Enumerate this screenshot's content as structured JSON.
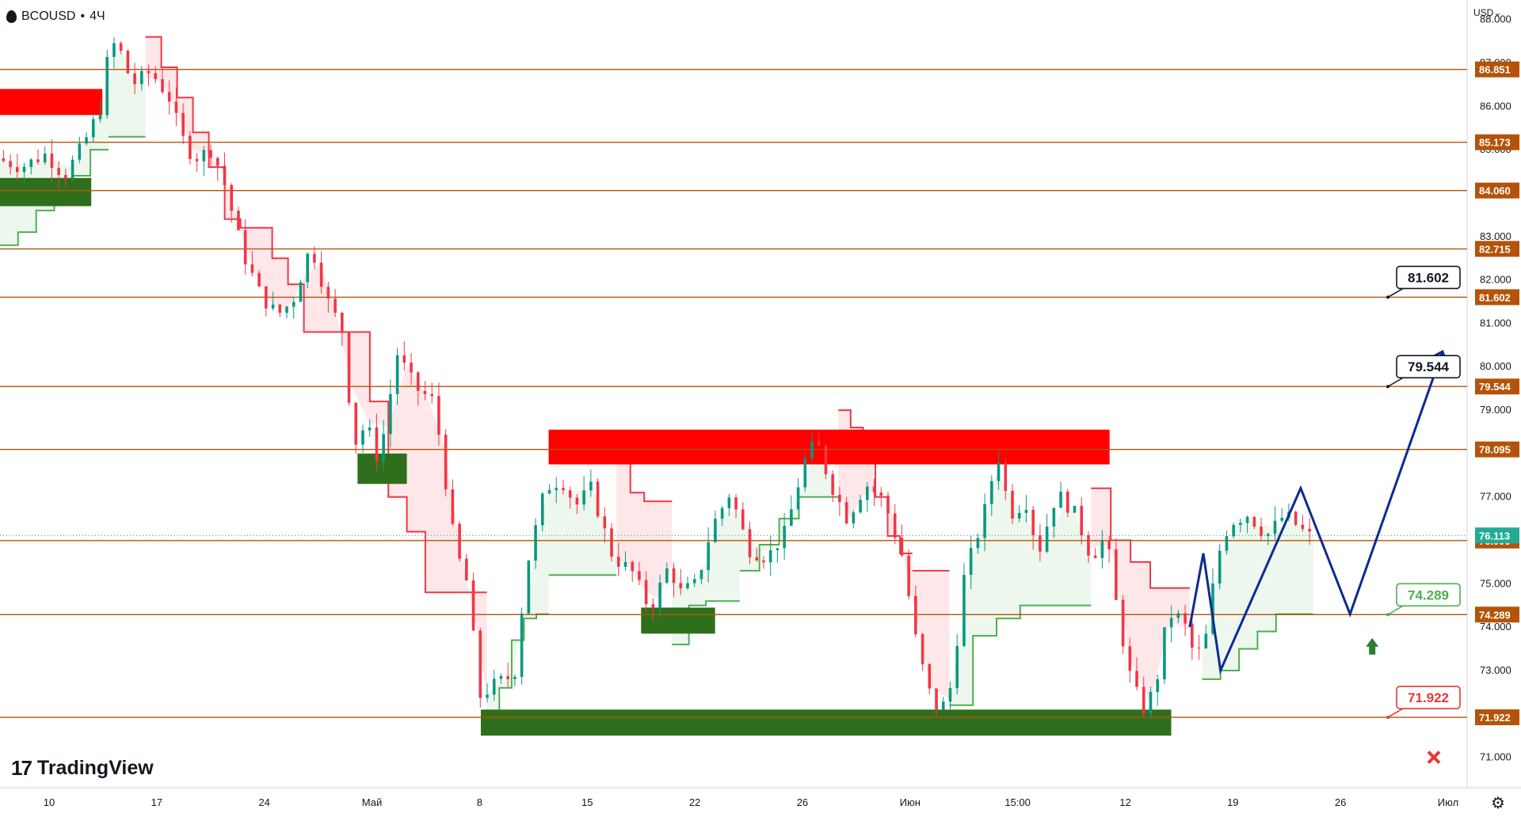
{
  "header": {
    "symbol": "BCOUSD",
    "sep": "•",
    "timeframe": "4Ч"
  },
  "currency": "USD",
  "brand": "TradingView",
  "settings_icon": "gear-icon",
  "chart_data": {
    "type": "candlestick",
    "y_axis": {
      "min": 70.3,
      "max": 88.45,
      "ticks": [
        71,
        72,
        73,
        74,
        75,
        76,
        77,
        78,
        79,
        80,
        81,
        82,
        83,
        84,
        85,
        86,
        87,
        88
      ],
      "decimals": 3
    },
    "x_axis": {
      "labels": [
        "10",
        "17",
        "24",
        "Май",
        "8",
        "15",
        "22",
        "26",
        "Июн",
        "15:00",
        "12",
        "19",
        "26",
        "Июл"
      ]
    },
    "current_price": {
      "value": 76.113,
      "label": "76.113",
      "color": "#22ab94"
    },
    "levels": [
      {
        "value": 86.851,
        "label": "86.851"
      },
      {
        "value": 85.173,
        "label": "85.173"
      },
      {
        "value": 84.06,
        "label": "84.060"
      },
      {
        "value": 82.715,
        "label": "82.715"
      },
      {
        "value": 81.602,
        "label": "81.602"
      },
      {
        "value": 79.544,
        "label": "79.544"
      },
      {
        "value": 78.095,
        "label": "78.095"
      },
      {
        "value": 75.995,
        "label": "75.995"
      },
      {
        "value": 74.289,
        "label": "74.289"
      },
      {
        "value": 71.922,
        "label": "71.922"
      }
    ],
    "level_color": "#b45309",
    "zones": [
      {
        "kind": "resistance",
        "color": "#ff0000",
        "start": 0,
        "end": 0.083,
        "low": 85.8,
        "high": 86.4
      },
      {
        "kind": "support",
        "color": "#2f6f1b",
        "start": 0,
        "end": 0.074,
        "low": 83.7,
        "high": 84.35
      },
      {
        "kind": "support",
        "color": "#2f6f1b",
        "start": 0.29,
        "end": 0.33,
        "low": 77.3,
        "high": 78.0
      },
      {
        "kind": "resistance",
        "color": "#ff0000",
        "start": 0.445,
        "end": 0.9,
        "low": 77.75,
        "high": 78.55
      },
      {
        "kind": "support",
        "color": "#2f6f1b",
        "start": 0.52,
        "end": 0.58,
        "low": 73.85,
        "high": 74.45
      },
      {
        "kind": "support",
        "color": "#2f6f1b",
        "start": 0.39,
        "end": 0.95,
        "low": 71.5,
        "high": 72.1
      }
    ],
    "forecast_path": {
      "color": "#0d2b8f",
      "points": [
        [
          0.965,
          74.0
        ],
        [
          0.976,
          75.7
        ],
        [
          0.99,
          73.0
        ],
        [
          1.055,
          77.2
        ],
        [
          1.095,
          74.3
        ],
        [
          1.17,
          80.35
        ]
      ]
    },
    "callouts": [
      {
        "label": "81.602",
        "value": 81.602,
        "border": "#131722",
        "text_color": "#131722"
      },
      {
        "label": "79.544",
        "value": 79.544,
        "border": "#131722",
        "text_color": "#131722"
      },
      {
        "label": "74.289",
        "value": 74.289,
        "border": "#4caf50",
        "text_color": "#4caf50"
      },
      {
        "label": "71.922",
        "value": 71.922,
        "border": "#e53935",
        "text_color": "#e53935"
      }
    ],
    "target_arrow": {
      "icon": "arrow-up-icon",
      "color": "#2e7d32",
      "value": 73.55
    },
    "stop_marker": {
      "icon": "cross-icon",
      "color": "#e53935",
      "value": 71.0
    },
    "indicator": {
      "type": "supertrend",
      "up_color": "#4caf50",
      "down_color": "#f23645"
    },
    "price_path": [
      [
        0,
        84.8
      ],
      [
        0.02,
        84.6
      ],
      [
        0.04,
        84.9
      ],
      [
        0.055,
        84.4
      ],
      [
        0.07,
        85.1
      ],
      [
        0.085,
        86.0
      ],
      [
        0.092,
        87.5
      ],
      [
        0.1,
        87.3
      ],
      [
        0.11,
        86.5
      ],
      [
        0.125,
        86.8
      ],
      [
        0.14,
        86.2
      ],
      [
        0.15,
        85.3
      ],
      [
        0.16,
        84.8
      ],
      [
        0.175,
        85.0
      ],
      [
        0.185,
        84.2
      ],
      [
        0.2,
        82.6
      ],
      [
        0.215,
        81.6
      ],
      [
        0.228,
        81.2
      ],
      [
        0.24,
        81.5
      ],
      [
        0.255,
        82.8
      ],
      [
        0.27,
        81.4
      ],
      [
        0.28,
        80.9
      ],
      [
        0.29,
        78.2
      ],
      [
        0.3,
        78.7
      ],
      [
        0.31,
        77.8
      ],
      [
        0.325,
        80.3
      ],
      [
        0.34,
        79.5
      ],
      [
        0.355,
        79.2
      ],
      [
        0.365,
        77.2
      ],
      [
        0.372,
        75.8
      ],
      [
        0.382,
        75.0
      ],
      [
        0.392,
        72.4
      ],
      [
        0.405,
        72.7
      ],
      [
        0.42,
        72.9
      ],
      [
        0.43,
        75.4
      ],
      [
        0.445,
        77.2
      ],
      [
        0.458,
        77.4
      ],
      [
        0.47,
        76.8
      ],
      [
        0.482,
        77.2
      ],
      [
        0.5,
        75.6
      ],
      [
        0.515,
        75.3
      ],
      [
        0.53,
        74.4
      ],
      [
        0.545,
        75.4
      ],
      [
        0.555,
        74.8
      ],
      [
        0.568,
        75.0
      ],
      [
        0.58,
        76.3
      ],
      [
        0.595,
        77.1
      ],
      [
        0.61,
        75.8
      ],
      [
        0.625,
        75.6
      ],
      [
        0.64,
        76.2
      ],
      [
        0.655,
        77.8
      ],
      [
        0.665,
        78.3
      ],
      [
        0.675,
        77.4
      ],
      [
        0.69,
        76.5
      ],
      [
        0.705,
        77.3
      ],
      [
        0.72,
        76.9
      ],
      [
        0.735,
        75.6
      ],
      [
        0.745,
        73.8
      ],
      [
        0.755,
        72.6
      ],
      [
        0.765,
        72.0
      ],
      [
        0.775,
        72.7
      ],
      [
        0.785,
        75.2
      ],
      [
        0.8,
        76.5
      ],
      [
        0.812,
        78.0
      ],
      [
        0.822,
        76.6
      ],
      [
        0.835,
        76.9
      ],
      [
        0.845,
        75.7
      ],
      [
        0.86,
        77.1
      ],
      [
        0.875,
        76.6
      ],
      [
        0.888,
        75.6
      ],
      [
        0.9,
        76.1
      ],
      [
        0.91,
        74.2
      ],
      [
        0.92,
        72.8
      ],
      [
        0.93,
        72.1
      ],
      [
        0.94,
        72.6
      ],
      [
        0.95,
        74.3
      ],
      [
        0.962,
        74.2
      ],
      [
        0.972,
        73.3
      ],
      [
        0.98,
        73.6
      ],
      [
        0.99,
        75.6
      ],
      [
        1.0,
        76.4
      ],
      [
        1.015,
        76.6
      ],
      [
        1.03,
        76.1
      ],
      [
        1.045,
        76.6
      ],
      [
        1.06,
        76.2
      ],
      [
        1.065,
        76.1
      ]
    ],
    "supertrend_path": [
      {
        "from": 0,
        "to": 0.088,
        "side": "up",
        "steps": [
          82.8,
          83.1,
          83.6,
          84.0,
          84.4,
          85.0
        ]
      },
      {
        "from": 0.088,
        "to": 0.118,
        "side": "up",
        "steps": [
          85.3,
          85.3,
          85.3
        ]
      },
      {
        "from": 0.118,
        "to": 0.285,
        "side": "down",
        "steps": [
          87.6,
          86.9,
          86.2,
          85.4,
          84.6,
          83.4,
          83.2,
          83.2,
          82.5,
          81.9,
          80.8,
          80.8,
          80.8
        ]
      },
      {
        "from": 0.285,
        "to": 0.375,
        "side": "down",
        "steps": [
          80.8,
          79.2,
          77.0,
          76.2,
          74.8,
          74.8
        ]
      },
      {
        "from": 0.375,
        "to": 0.395,
        "side": "down",
        "steps": [
          74.8,
          74.8
        ]
      },
      {
        "from": 0.395,
        "to": 0.445,
        "side": "up",
        "steps": [
          71.9,
          72.6,
          73.7,
          74.2,
          74.3
        ]
      },
      {
        "from": 0.445,
        "to": 0.5,
        "side": "up",
        "steps": [
          75.2,
          75.2,
          75.2
        ]
      },
      {
        "from": 0.5,
        "to": 0.545,
        "side": "down",
        "steps": [
          77.8,
          77.1,
          76.9,
          76.9
        ]
      },
      {
        "from": 0.545,
        "to": 0.6,
        "side": "up",
        "steps": [
          73.6,
          74.5,
          74.6,
          74.6
        ]
      },
      {
        "from": 0.6,
        "to": 0.68,
        "side": "up",
        "steps": [
          75.3,
          75.9,
          76.5,
          77.0,
          77.0
        ]
      },
      {
        "from": 0.68,
        "to": 0.74,
        "side": "down",
        "steps": [
          79.0,
          78.6,
          78.4,
          77.0,
          76.1,
          75.7
        ]
      },
      {
        "from": 0.74,
        "to": 0.77,
        "side": "down",
        "steps": [
          75.3,
          75.3
        ]
      },
      {
        "from": 0.77,
        "to": 0.885,
        "side": "up",
        "steps": [
          72.2,
          73.8,
          74.2,
          74.5,
          74.5,
          74.5
        ]
      },
      {
        "from": 0.885,
        "to": 0.965,
        "side": "down",
        "steps": [
          77.2,
          76.0,
          75.5,
          74.9,
          74.9
        ]
      },
      {
        "from": 0.975,
        "to": 1.065,
        "side": "up",
        "steps": [
          72.8,
          73.0,
          73.5,
          73.9,
          74.3,
          74.3
        ]
      }
    ]
  }
}
